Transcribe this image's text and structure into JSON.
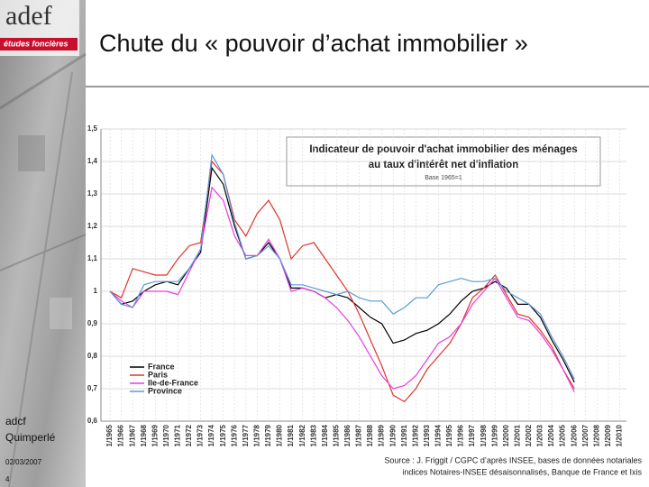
{
  "slide": {
    "logo": "adef",
    "logo_tagline": "études foncières",
    "title": "Chute du « pouvoir d’achat immobilier »",
    "footer_org": [
      "adcf",
      "Quimperlé"
    ],
    "date": "02/03/2007",
    "page": "4",
    "source": [
      "Source : J. Friggit / CGPC d’après INSEE, bases de données notariales",
      "indices Notaires-INSEE désaisonnalisés, Banque de France et Ixis"
    ]
  },
  "chart_data": {
    "type": "line",
    "title": [
      "Indicateur de pouvoir d'achat immobilier des ménages",
      "au taux d'intérêt net d'inflation"
    ],
    "subtitle": "Base 1965=1",
    "x": [
      1965,
      1966,
      1967,
      1968,
      1969,
      1970,
      1971,
      1972,
      1973,
      1974,
      1975,
      1976,
      1977,
      1978,
      1979,
      1980,
      1981,
      1982,
      1983,
      1984,
      1985,
      1986,
      1987,
      1988,
      1989,
      1990,
      1991,
      1992,
      1993,
      1994,
      1995,
      1996,
      1997,
      1998,
      1999,
      2000,
      2001,
      2002,
      2003,
      2004,
      2005,
      2006
    ],
    "series": [
      {
        "name": "France",
        "color": "#000000",
        "values": [
          1.0,
          0.96,
          0.97,
          1.0,
          1.02,
          1.03,
          1.02,
          1.07,
          1.12,
          1.38,
          1.33,
          1.2,
          1.1,
          1.11,
          1.15,
          1.1,
          1.01,
          1.01,
          1.0,
          0.98,
          0.99,
          0.98,
          0.95,
          0.92,
          0.9,
          0.84,
          0.85,
          0.87,
          0.88,
          0.9,
          0.93,
          0.97,
          1.0,
          1.01,
          1.03,
          1.01,
          0.96,
          0.96,
          0.92,
          0.85,
          0.79,
          0.72
        ]
      },
      {
        "name": "Paris",
        "color": "#e0342c",
        "values": [
          1.0,
          0.98,
          1.07,
          1.06,
          1.05,
          1.05,
          1.1,
          1.14,
          1.15,
          1.4,
          1.36,
          1.22,
          1.17,
          1.24,
          1.28,
          1.22,
          1.1,
          1.14,
          1.15,
          1.1,
          1.05,
          1.0,
          0.93,
          0.85,
          0.77,
          0.68,
          0.66,
          0.7,
          0.76,
          0.8,
          0.84,
          0.9,
          0.98,
          1.01,
          1.05,
          0.99,
          0.93,
          0.92,
          0.88,
          0.83,
          0.76,
          0.7
        ]
      },
      {
        "name": "Ile-de-France",
        "color": "#e83ce0",
        "values": [
          1.0,
          0.97,
          0.95,
          1.0,
          1.0,
          1.0,
          0.99,
          1.06,
          1.13,
          1.32,
          1.28,
          1.17,
          1.11,
          1.11,
          1.16,
          1.1,
          1.0,
          1.01,
          1.0,
          0.98,
          0.95,
          0.91,
          0.86,
          0.8,
          0.74,
          0.7,
          0.71,
          0.74,
          0.79,
          0.84,
          0.86,
          0.9,
          0.96,
          1.0,
          1.04,
          0.98,
          0.92,
          0.91,
          0.87,
          0.82,
          0.76,
          0.69
        ]
      },
      {
        "name": "Province",
        "color": "#5b9bd5",
        "values": [
          1.0,
          0.96,
          0.95,
          1.02,
          1.03,
          1.03,
          1.03,
          1.07,
          1.13,
          1.42,
          1.36,
          1.21,
          1.1,
          1.11,
          1.14,
          1.1,
          1.02,
          1.02,
          1.01,
          1.0,
          0.99,
          1.0,
          0.98,
          0.97,
          0.97,
          0.93,
          0.95,
          0.98,
          0.98,
          1.02,
          1.03,
          1.04,
          1.03,
          1.03,
          1.04,
          1.0,
          0.98,
          0.96,
          0.93,
          0.86,
          0.8,
          0.73
        ]
      }
    ],
    "xlim": [
      1964.2,
      2010.6
    ],
    "xticks": [
      {
        "value": 1965,
        "label": "1/1965"
      },
      {
        "value": 1966,
        "label": "1/1966"
      },
      {
        "value": 1967,
        "label": "1/1967"
      },
      {
        "value": 1968,
        "label": "1/1968"
      },
      {
        "value": 1969,
        "label": "1/1969"
      },
      {
        "value": 1970,
        "label": "1/1970"
      },
      {
        "value": 1971,
        "label": "1/1971"
      },
      {
        "value": 1972,
        "label": "1/1972"
      },
      {
        "value": 1973,
        "label": "1/1973"
      },
      {
        "value": 1974,
        "label": "1/1974"
      },
      {
        "value": 1975,
        "label": "1/1975"
      },
      {
        "value": 1976,
        "label": "1/1976"
      },
      {
        "value": 1977,
        "label": "1/1977"
      },
      {
        "value": 1978,
        "label": "1/1978"
      },
      {
        "value": 1979,
        "label": "1/1979"
      },
      {
        "value": 1980,
        "label": "1/1980"
      },
      {
        "value": 1981,
        "label": "1/1981"
      },
      {
        "value": 1982,
        "label": "1/1982"
      },
      {
        "value": 1983,
        "label": "1/1983"
      },
      {
        "value": 1984,
        "label": "1/1984"
      },
      {
        "value": 1985,
        "label": "1/1985"
      },
      {
        "value": 1986,
        "label": "1/1986"
      },
      {
        "value": 1987,
        "label": "1/1987"
      },
      {
        "value": 1988,
        "label": "1/1988"
      },
      {
        "value": 1989,
        "label": "1/1989"
      },
      {
        "value": 1990,
        "label": "1/1990"
      },
      {
        "value": 1991,
        "label": "1/1991"
      },
      {
        "value": 1992,
        "label": "1/1992"
      },
      {
        "value": 1993,
        "label": "1/1993"
      },
      {
        "value": 1994,
        "label": "1/1994"
      },
      {
        "value": 1995,
        "label": "1/1995"
      },
      {
        "value": 1996,
        "label": "1/1996"
      },
      {
        "value": 1997,
        "label": "1/1997"
      },
      {
        "value": 1998,
        "label": "1/1998"
      },
      {
        "value": 1999,
        "label": "1/1999"
      },
      {
        "value": 2000,
        "label": "1/2000"
      },
      {
        "value": 2001,
        "label": "1/2001"
      },
      {
        "value": 2002,
        "label": "1/2002"
      },
      {
        "value": 2003,
        "label": "1/2003"
      },
      {
        "value": 2004,
        "label": "1/2004"
      },
      {
        "value": 2005,
        "label": "1/2005"
      },
      {
        "value": 2006,
        "label": "1/2006"
      },
      {
        "value": 2007,
        "label": "1/2007"
      },
      {
        "value": 2008,
        "label": "1/2008"
      },
      {
        "value": 2009,
        "label": "1/2009"
      },
      {
        "value": 2010,
        "label": "1/2010"
      }
    ],
    "ylim": [
      0.6,
      1.5
    ],
    "yticks": [
      {
        "value": 0.6,
        "label": "0,6"
      },
      {
        "value": 0.7,
        "label": "0,7"
      },
      {
        "value": 0.8,
        "label": "0,8"
      },
      {
        "value": 0.9,
        "label": "0,9"
      },
      {
        "value": 1,
        "label": "1"
      },
      {
        "value": 1.1,
        "label": "1,1"
      },
      {
        "value": 1.2,
        "label": "1,2"
      },
      {
        "value": 1.3,
        "label": "1,3"
      },
      {
        "value": 1.4,
        "label": "1,4"
      },
      {
        "value": 1.5,
        "label": "1,5"
      }
    ],
    "grid": true,
    "legend": "lower left"
  }
}
